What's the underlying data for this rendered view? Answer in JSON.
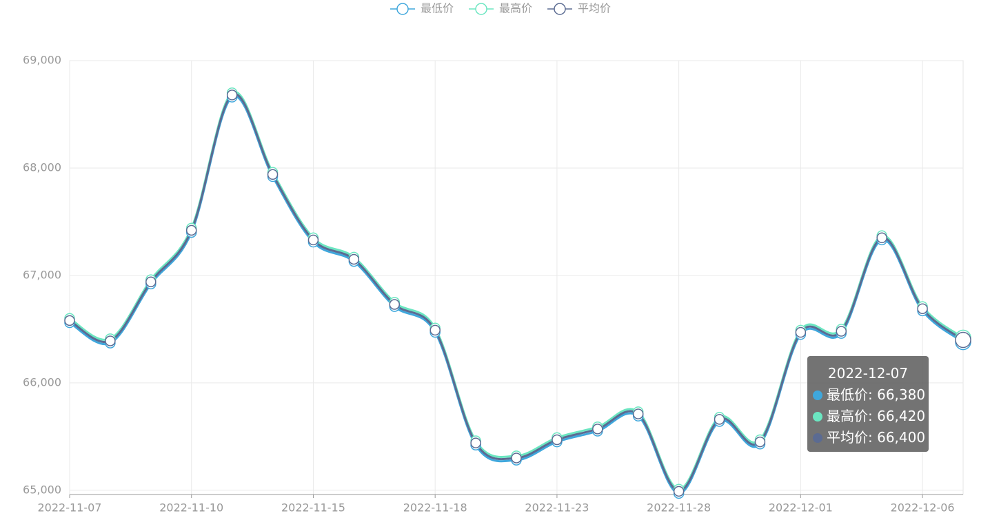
{
  "chart_data": {
    "type": "line",
    "categories": [
      "2022-11-07",
      null,
      null,
      "2022-11-10",
      null,
      null,
      "2022-11-15",
      null,
      null,
      "2022-11-18",
      null,
      null,
      "2022-11-23",
      null,
      null,
      "2022-11-28",
      null,
      null,
      "2022-12-01",
      null,
      null,
      "2022-12-06",
      "2022-12-07"
    ],
    "series": [
      {
        "name": "最低价",
        "color": "#3fa7dc",
        "values": [
          66560,
          66370,
          66920,
          67400,
          68660,
          67920,
          67310,
          67130,
          66710,
          66470,
          65420,
          65280,
          65450,
          65550,
          65690,
          64970,
          65640,
          65430,
          66450,
          66460,
          67330,
          66670,
          66380
        ],
        "value_labels": [
          null,
          null,
          null,
          null,
          null,
          null,
          null,
          null,
          null,
          null,
          null,
          null,
          null,
          null,
          null,
          null,
          null,
          null,
          null,
          null,
          null,
          null,
          "66,380"
        ]
      },
      {
        "name": "最高价",
        "color": "#6be6c1",
        "values": [
          66600,
          66410,
          66960,
          67440,
          68700,
          67960,
          67350,
          67170,
          66750,
          66510,
          65460,
          65320,
          65490,
          65590,
          65730,
          65010,
          65680,
          65470,
          66490,
          66500,
          67370,
          66710,
          66420
        ],
        "value_labels": [
          null,
          null,
          null,
          null,
          null,
          null,
          null,
          null,
          null,
          null,
          null,
          null,
          null,
          null,
          null,
          null,
          null,
          null,
          null,
          null,
          null,
          null,
          "66,420"
        ]
      },
      {
        "name": "平均价",
        "color": "#5b6b92",
        "values": [
          66580,
          66390,
          66940,
          67420,
          68680,
          67940,
          67330,
          67150,
          66730,
          66490,
          65440,
          65300,
          65470,
          65570,
          65710,
          64990,
          65660,
          65450,
          66470,
          66480,
          67350,
          66690,
          66400
        ],
        "value_labels": [
          null,
          null,
          null,
          null,
          null,
          null,
          null,
          null,
          null,
          null,
          null,
          null,
          null,
          null,
          null,
          null,
          null,
          null,
          null,
          null,
          null,
          null,
          "66,400"
        ]
      }
    ],
    "ylim": [
      64960,
      69000
    ],
    "yticks": [
      {
        "value": 65000,
        "label": "65,000"
      },
      {
        "value": 66000,
        "label": "66,000"
      },
      {
        "value": 67000,
        "label": "67,000"
      },
      {
        "value": 68000,
        "label": "68,000"
      },
      {
        "value": 69000,
        "label": "69,000"
      }
    ],
    "grid": true,
    "smooth": true,
    "legend": "top"
  }
}
